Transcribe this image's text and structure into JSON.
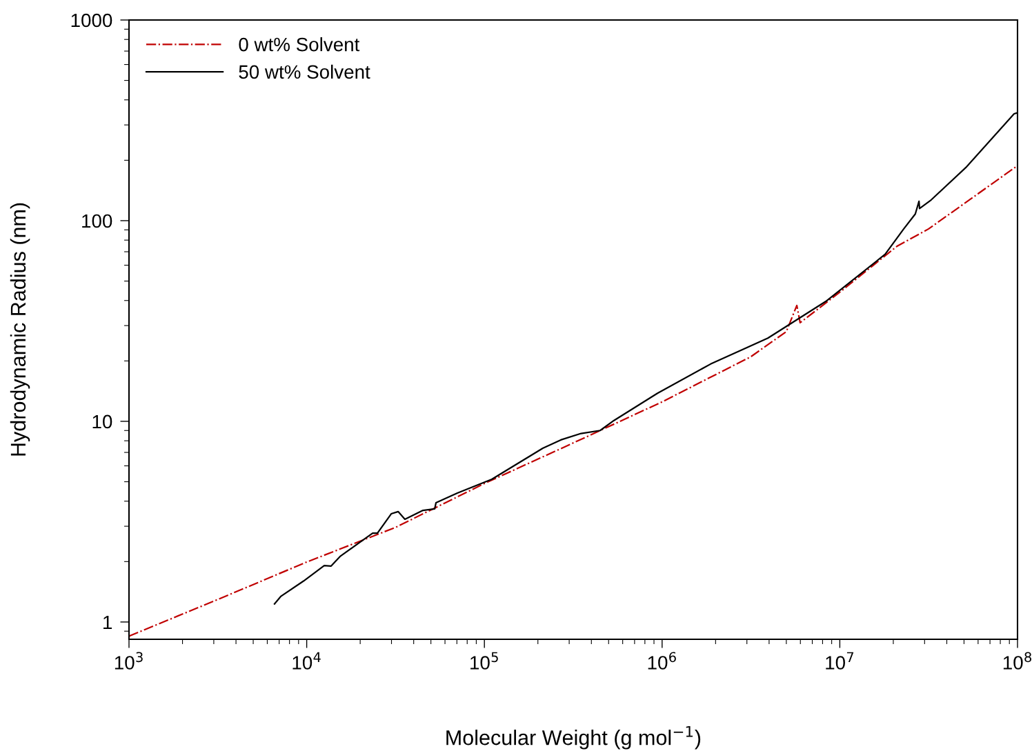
{
  "chart_data": {
    "type": "line",
    "xlabel": "Molecular Weight (g mol$^{−1}$)",
    "ylabel": "Hydrodynamic Radius (nm)",
    "log": "xy",
    "grid": false,
    "legend": "top left",
    "xlim": [
      1000,
      100000000
    ],
    "ylim": [
      0.82,
      1000
    ],
    "xticks": [
      {
        "value": 1000,
        "label": "10$^{3}$"
      },
      {
        "value": 10000,
        "label": "10$^{4}$"
      },
      {
        "value": 100000,
        "label": "10$^{5}$"
      },
      {
        "value": 1000000,
        "label": "10$^{6}$"
      },
      {
        "value": 10000000,
        "label": "10$^{7}$"
      },
      {
        "value": 100000000,
        "label": "10$^{8}$"
      }
    ],
    "yticks": [
      1,
      10,
      100,
      1000
    ],
    "series": [
      {
        "name": "0 wt% Solvent",
        "color": "#c00000",
        "line_style": "dashdot",
        "x": [
          1000,
          3000,
          10000,
          31600,
          100000,
          316000,
          1000000,
          3160000,
          5000000,
          5730000,
          5980000,
          10000000,
          21000000,
          31600000,
          100000000
        ],
        "values": [
          0.85,
          1.27,
          1.99,
          2.96,
          4.9,
          7.8,
          12.5,
          21,
          28,
          37.8,
          31,
          44,
          74.6,
          91,
          188
        ]
      },
      {
        "name": "50 wt% Solvent",
        "color": "#000000",
        "line_style": "solid",
        "x": [
          6590,
          7140,
          9600,
          12550,
          13720,
          15400,
          19600,
          23500,
          25000,
          29900,
          32700,
          35700,
          45100,
          52500,
          53400,
          70400,
          110000,
          213000,
          269000,
          350000,
          448000,
          536000,
          942000,
          1875000,
          3940000,
          8340000,
          18000000,
          22900000,
          26600000,
          27900000,
          28100000,
          32700000,
          51200000,
          95700000,
          100000000
        ],
        "values": [
          1.23,
          1.34,
          1.6,
          1.91,
          1.9,
          2.12,
          2.47,
          2.77,
          2.77,
          3.46,
          3.55,
          3.25,
          3.6,
          3.66,
          3.93,
          4.39,
          5.14,
          7.34,
          8.08,
          8.7,
          9.0,
          10.1,
          13.8,
          19.3,
          26,
          39.6,
          68,
          91,
          108,
          125,
          115,
          127,
          184,
          341,
          345
        ]
      }
    ]
  }
}
